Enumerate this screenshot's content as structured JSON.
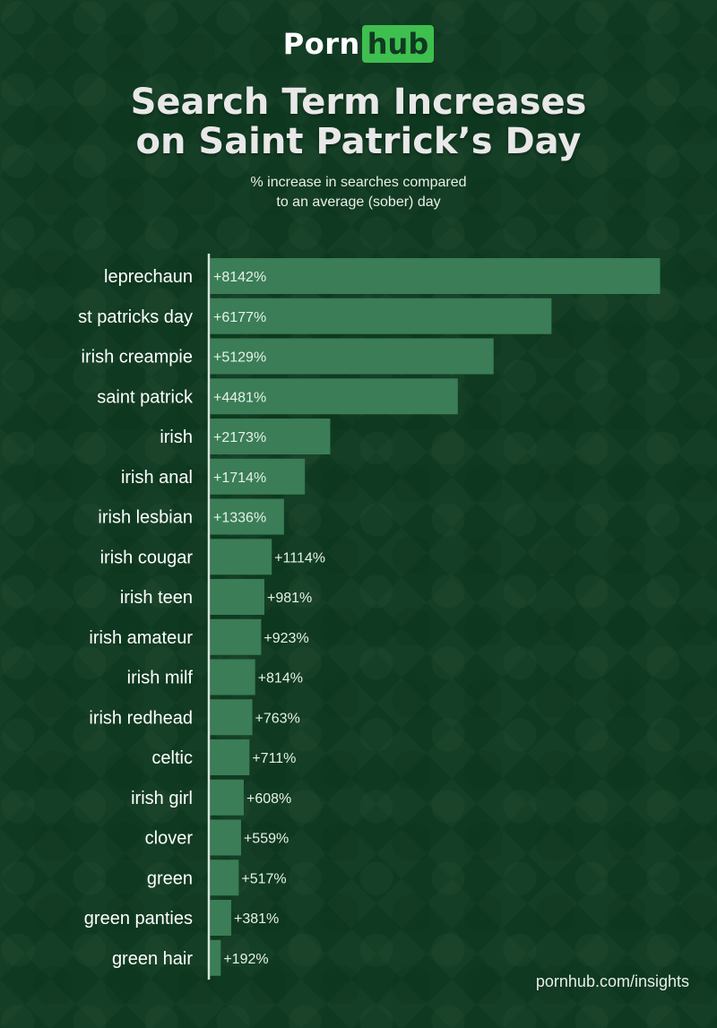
{
  "header": {
    "logo_part_a": "Porn",
    "logo_part_b": "hub",
    "title_line1": "Search Term Increases",
    "title_line2": "on Saint Patrick’s Day",
    "subtitle_line1": "% increase in searches compared",
    "subtitle_line2": "to an average (sober) day"
  },
  "footer": {
    "source": "pornhub.com/insights"
  },
  "colors": {
    "background": "#0f3a21",
    "bar": "#3a7d56",
    "axis": "#d9e6dc",
    "logo_accent": "#3fbf4f"
  },
  "chart_data": {
    "type": "bar",
    "orientation": "horizontal",
    "title": "Search Term Increases on Saint Patrick’s Day",
    "subtitle": "% increase in searches compared to an average (sober) day",
    "categories": [
      "leprechaun",
      "st patricks day",
      "irish creampie",
      "saint patrick",
      "irish",
      "irish anal",
      "irish lesbian",
      "irish cougar",
      "irish teen",
      "irish amateur",
      "irish milf",
      "irish redhead",
      "celtic",
      "irish girl",
      "clover",
      "green",
      "green panties",
      "green hair"
    ],
    "values": [
      8142,
      6177,
      5129,
      4481,
      2173,
      1714,
      1336,
      1114,
      981,
      923,
      814,
      763,
      711,
      608,
      559,
      517,
      381,
      192
    ],
    "labels": [
      "+8142%",
      "+6177%",
      "+5129%",
      "+4481%",
      "+2173%",
      "+1714%",
      "+1336%",
      "+1114%",
      "+981%",
      "+923%",
      "+814%",
      "+763%",
      "+711%",
      "+608%",
      "+559%",
      "+517%",
      "+381%",
      "+192%"
    ],
    "xlim": [
      0,
      8142
    ],
    "grid": false,
    "legend": "none"
  }
}
